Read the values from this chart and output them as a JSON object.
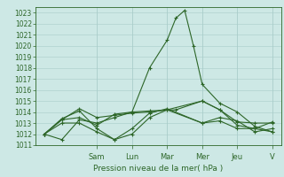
{
  "xlabel": "Pression niveau de la mer( hPa )",
  "background_color": "#cde8e5",
  "grid_color": "#a8ccc9",
  "line_color": "#2d6628",
  "ylim": [
    1011,
    1023.5
  ],
  "yticks": [
    1011,
    1012,
    1013,
    1014,
    1015,
    1016,
    1017,
    1018,
    1019,
    1020,
    1021,
    1022,
    1023
  ],
  "xlim": [
    0,
    14
  ],
  "day_labels": [
    "Sam",
    "Lun",
    "Mar",
    "Mer",
    "Jeu",
    "V"
  ],
  "day_positions": [
    3.5,
    5.5,
    7.5,
    9.5,
    11.5,
    13.5
  ],
  "series": [
    {
      "x": [
        0.5,
        1.5,
        2.5,
        3.5,
        4.5,
        5.5,
        6.5,
        7.5,
        8.0,
        8.5,
        9.0,
        9.5,
        10.5,
        11.5,
        12.5,
        13.5
      ],
      "y": [
        1012.0,
        1011.5,
        1013.3,
        1013.0,
        1013.5,
        1014.0,
        1018.0,
        1020.5,
        1022.5,
        1023.2,
        1020.0,
        1016.5,
        1014.8,
        1014.0,
        1012.7,
        1012.2
      ]
    },
    {
      "x": [
        0.5,
        1.5,
        2.5,
        3.5,
        4.5,
        5.5,
        6.5,
        8.0,
        9.5,
        10.5,
        11.5,
        12.5,
        13.5
      ],
      "y": [
        1012.0,
        1013.3,
        1013.5,
        1012.8,
        1013.8,
        1014.0,
        1014.1,
        1014.2,
        1015.0,
        1014.2,
        1013.1,
        1013.0,
        1013.0
      ]
    },
    {
      "x": [
        0.5,
        1.5,
        2.5,
        3.5,
        4.5,
        5.5,
        6.5,
        7.5,
        9.5,
        10.5,
        11.5,
        12.5,
        13.5
      ],
      "y": [
        1012.0,
        1013.3,
        1014.3,
        1013.5,
        1013.7,
        1013.9,
        1014.0,
        1014.2,
        1015.0,
        1014.2,
        1012.8,
        1012.5,
        1012.2
      ]
    },
    {
      "x": [
        0.5,
        1.5,
        2.5,
        3.5,
        4.5,
        5.5,
        6.5,
        7.5,
        9.5,
        10.5,
        11.5,
        12.5,
        13.5
      ],
      "y": [
        1012.0,
        1013.4,
        1014.1,
        1012.5,
        1011.5,
        1012.0,
        1013.5,
        1014.2,
        1013.0,
        1013.5,
        1013.2,
        1012.2,
        1012.5
      ]
    },
    {
      "x": [
        0.5,
        1.5,
        2.5,
        3.5,
        4.5,
        5.5,
        6.5,
        7.5,
        9.5,
        10.5,
        11.5,
        12.5,
        13.5
      ],
      "y": [
        1012.0,
        1013.0,
        1013.0,
        1012.2,
        1011.5,
        1012.5,
        1013.9,
        1014.3,
        1013.0,
        1013.2,
        1012.5,
        1012.5,
        1013.1
      ]
    }
  ]
}
